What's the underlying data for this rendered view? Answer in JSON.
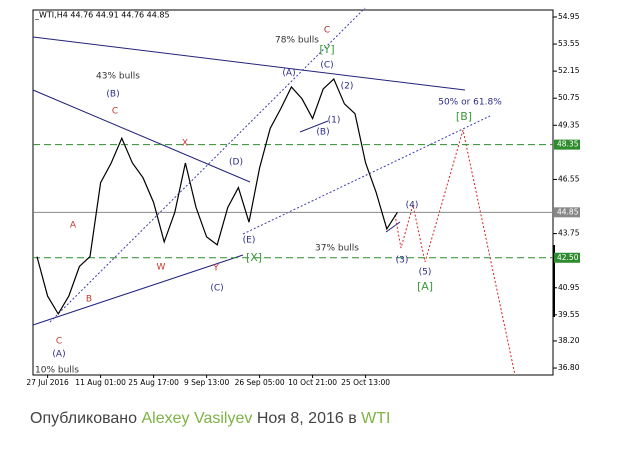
{
  "chart_data": {
    "type": "line",
    "title": "_WTI,H4 44.76 44.91 44.76 44.85",
    "categories": [
      null,
      "27 Jul 2016",
      null,
      null,
      null,
      null,
      "11 Aug 01:00",
      null,
      null,
      null,
      null,
      "25 Aug 17:00",
      null,
      null,
      null,
      null,
      "9 Sep 13:00",
      null,
      null,
      null,
      null,
      "26 Sep 05:00",
      null,
      null,
      null,
      null,
      "10 Oct 21:00",
      null,
      null,
      null,
      null,
      "25 Oct 13:00",
      null,
      null,
      null
    ],
    "values": [
      42.56,
      40.52,
      39.6,
      40.52,
      42.05,
      42.56,
      46.38,
      47.4,
      48.68,
      47.4,
      46.64,
      45.36,
      43.32,
      44.85,
      47.4,
      45.11,
      43.58,
      43.17,
      45.11,
      46.13,
      44.34,
      47.15,
      49.19,
      50.21,
      51.33,
      50.72,
      49.7,
      51.23,
      51.74,
      50.46,
      49.95,
      47.4,
      45.87,
      43.99,
      44.85
    ],
    "color": "#000000",
    "ylim": [
      36.44,
      55.31
    ],
    "yticks": [
      54.95,
      53.55,
      52.15,
      50.75,
      49.35,
      46.55,
      43.75,
      40.95,
      39.55,
      {
        "value": 38.2,
        "label": "38.20"
      },
      {
        "value": 36.8,
        "label": "36.80"
      }
    ],
    "levels": [
      {
        "value": 48.35,
        "color": "#2e8b2e",
        "dashed": true
      },
      {
        "value": 44.85,
        "color": "#888888",
        "dashed": false
      },
      {
        "value": 42.5,
        "label": "42.50",
        "color": "#2e8b2e",
        "dashed": true
      }
    ],
    "annotations": [
      {
        "text": "78% bulls",
        "color": "#333333"
      },
      {
        "text": "C",
        "color": "#9b2d2d"
      },
      {
        "text": "[Y]",
        "color": "#3a9a3a"
      },
      {
        "text": "(A)",
        "color": "#2b2b8a"
      },
      {
        "text": "(C)",
        "color": "#2b2b8a"
      },
      {
        "text": "(2)",
        "color": "#2b2b8a"
      },
      {
        "text": "(1)",
        "color": "#2b2b8a"
      },
      {
        "text": "(B)",
        "color": "#2b2b8a"
      },
      {
        "text": "50% or 61.8%",
        "color": "#2b2b8a"
      },
      {
        "text": "[B]",
        "color": "#3a9a3a"
      },
      {
        "text": "43% bulls",
        "color": "#333333"
      },
      {
        "text": "(B)",
        "color": "#2b2b8a"
      },
      {
        "text": "C",
        "color": "#c0392b"
      },
      {
        "text": "X",
        "color": "#c0392b"
      },
      {
        "text": "(D)",
        "color": "#2b2b8a"
      },
      {
        "text": "A",
        "color": "#c0392b"
      },
      {
        "text": "W",
        "color": "#c0392b"
      },
      {
        "text": "Y",
        "color": "#c0392b"
      },
      {
        "text": "[X]",
        "color": "#3a9a3a"
      },
      {
        "text": "(E)",
        "color": "#2b2b8a"
      },
      {
        "text": "(C)",
        "color": "#2b2b8a"
      },
      {
        "text": "B",
        "color": "#c0392b"
      },
      {
        "text": "C",
        "color": "#c0392b"
      },
      {
        "text": "(A)",
        "color": "#2b2b8a"
      },
      {
        "text": "10% bulls",
        "color": "#333333"
      },
      {
        "text": "37% bulls",
        "color": "#333333"
      },
      {
        "text": "(4)",
        "color": "#2b2b8a"
      },
      {
        "text": "(3)",
        "color": "#2b2b8a"
      },
      {
        "text": "(5)",
        "color": "#2b2b8a"
      },
      {
        "text": "[A]",
        "color": "#3a9a3a"
      }
    ]
  },
  "caption": {
    "prefix": "Опубликовано",
    "author": "Alexey Vasilyev",
    "date": "Ноя 8, 2016 в",
    "category": "WTI"
  }
}
